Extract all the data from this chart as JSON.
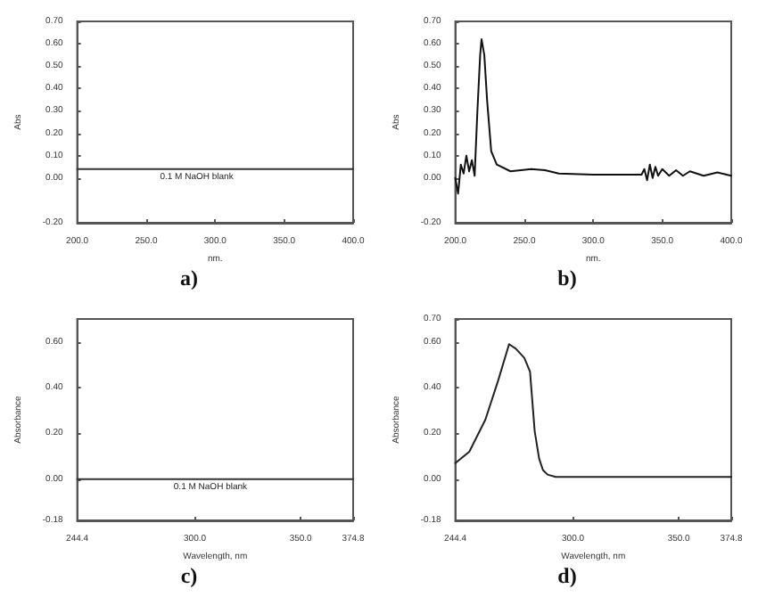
{
  "chart_data": [
    {
      "type": "line",
      "title": "a)",
      "xlabel": "nm.",
      "ylabel": "Abs",
      "xlim": [
        200,
        400
      ],
      "xticks": [
        {
          "value": 200,
          "label": "200.0"
        },
        {
          "value": 250,
          "label": "250.0"
        },
        {
          "value": 300,
          "label": "300.0"
        },
        {
          "value": 350,
          "label": "350.0"
        },
        {
          "value": 400,
          "label": "400.0"
        }
      ],
      "ylim": [
        -0.2,
        0.7
      ],
      "yticks": [
        {
          "value": -0.2,
          "label": "-0.20"
        },
        {
          "value": 0,
          "label": "0.00"
        },
        {
          "value": 0.1,
          "label": "0.10"
        },
        {
          "value": 0.2,
          "label": "0.20"
        },
        {
          "value": 0.3,
          "label": "0.30"
        },
        {
          "value": 0.4,
          "label": "0.40"
        },
        {
          "value": 0.5,
          "label": "0.50"
        },
        {
          "value": 0.6,
          "label": "0.60"
        },
        {
          "value": 0.7,
          "label": "0.70"
        }
      ],
      "annotations": [
        {
          "text": "0.1 M NaOH blank",
          "x": 260,
          "y": 0.04
        }
      ],
      "series": [
        {
          "color": "#333333",
          "x": [
            200,
            250,
            300,
            350,
            400
          ],
          "values": [
            0.04,
            0.04,
            0.04,
            0.04,
            0.04
          ]
        }
      ]
    },
    {
      "type": "line",
      "title": "b)",
      "xlabel": "nm.",
      "ylabel": "Abs",
      "xlim": [
        200,
        400
      ],
      "xticks": [
        {
          "value": 200,
          "label": "200.0"
        },
        {
          "value": 250,
          "label": "250.0"
        },
        {
          "value": 300,
          "label": "300.0"
        },
        {
          "value": 350,
          "label": "350.0"
        },
        {
          "value": 400,
          "label": "400.0"
        }
      ],
      "ylim": [
        -0.2,
        0.7
      ],
      "yticks": [
        {
          "value": -0.2,
          "label": "-0.20"
        },
        {
          "value": 0,
          "label": "0.00"
        },
        {
          "value": 0.1,
          "label": "0.10"
        },
        {
          "value": 0.2,
          "label": "0.20"
        },
        {
          "value": 0.3,
          "label": "0.30"
        },
        {
          "value": 0.4,
          "label": "0.40"
        },
        {
          "value": 0.5,
          "label": "0.50"
        },
        {
          "value": 0.6,
          "label": "0.60"
        },
        {
          "value": 0.7,
          "label": "0.70"
        }
      ],
      "series": [
        {
          "color": "#111111",
          "x": [
            200,
            202,
            204,
            206,
            208,
            210,
            212,
            214,
            216,
            218,
            219,
            221,
            223,
            226,
            230,
            240,
            255,
            265,
            275,
            300,
            335,
            337,
            339,
            341,
            343,
            345,
            347,
            350,
            355,
            360,
            365,
            370,
            380,
            390,
            400
          ],
          "values": [
            0.0,
            -0.07,
            0.06,
            0.02,
            0.1,
            0.03,
            0.08,
            0.01,
            0.3,
            0.55,
            0.62,
            0.55,
            0.35,
            0.12,
            0.06,
            0.03,
            0.04,
            0.035,
            0.02,
            0.015,
            0.015,
            0.04,
            -0.01,
            0.06,
            0.0,
            0.05,
            0.01,
            0.04,
            0.01,
            0.035,
            0.01,
            0.03,
            0.01,
            0.025,
            0.01
          ]
        }
      ]
    },
    {
      "type": "line",
      "title": "c)",
      "xlabel": "Wavelength, nm",
      "ylabel": "Absorbance",
      "xlim": [
        244.4,
        374.8
      ],
      "xticks": [
        {
          "value": 244.4,
          "label": "244.4"
        },
        {
          "value": 300,
          "label": "300.0"
        },
        {
          "value": 350,
          "label": "350.0"
        },
        {
          "value": 374.8,
          "label": "374.8"
        }
      ],
      "ylim": [
        -0.18,
        0.7
      ],
      "yticks": [
        {
          "value": -0.18,
          "label": "-0.18"
        },
        {
          "value": 0,
          "label": "0.00"
        },
        {
          "value": 0.2,
          "label": "0.20"
        },
        {
          "value": 0.4,
          "label": "0.40"
        },
        {
          "value": 0.6,
          "label": "0.60"
        }
      ],
      "annotations": [
        {
          "text": "0.1 M NaOH blank",
          "x": 290,
          "y": 0
        }
      ],
      "series": [
        {
          "color": "#333333",
          "x": [
            244.4,
            300,
            350,
            374.8
          ],
          "values": [
            0,
            0,
            0,
            0
          ]
        }
      ]
    },
    {
      "type": "line",
      "title": "d)",
      "xlabel": "Wavelength, nm",
      "ylabel": "Absorbance",
      "xlim": [
        244.4,
        374.8
      ],
      "xticks": [
        {
          "value": 244.4,
          "label": "244.4"
        },
        {
          "value": 300,
          "label": "300.0"
        },
        {
          "value": 350,
          "label": "350.0"
        },
        {
          "value": 374.8,
          "label": "374.8"
        }
      ],
      "ylim": [
        -0.18,
        0.7
      ],
      "yticks": [
        {
          "value": -0.18,
          "label": "-0.18"
        },
        {
          "value": 0,
          "label": "0.00"
        },
        {
          "value": 0.2,
          "label": "0.20"
        },
        {
          "value": 0.4,
          "label": "0.40"
        },
        {
          "value": 0.6,
          "label": "0.60"
        },
        {
          "value": 0.7,
          "label": "0.70"
        }
      ],
      "series": [
        {
          "color": "#222222",
          "x": [
            244.4,
            251,
            258.6,
            264.6,
            269.8,
            273,
            277,
            279.7,
            281.9,
            284,
            285.8,
            288,
            291.8,
            300,
            320,
            340,
            360,
            374.8
          ],
          "values": [
            0.07,
            0.12,
            0.26,
            0.43,
            0.59,
            0.57,
            0.53,
            0.47,
            0.21,
            0.09,
            0.04,
            0.02,
            0.01,
            0.01,
            0.01,
            0.01,
            0.01,
            0.01
          ]
        }
      ]
    }
  ]
}
